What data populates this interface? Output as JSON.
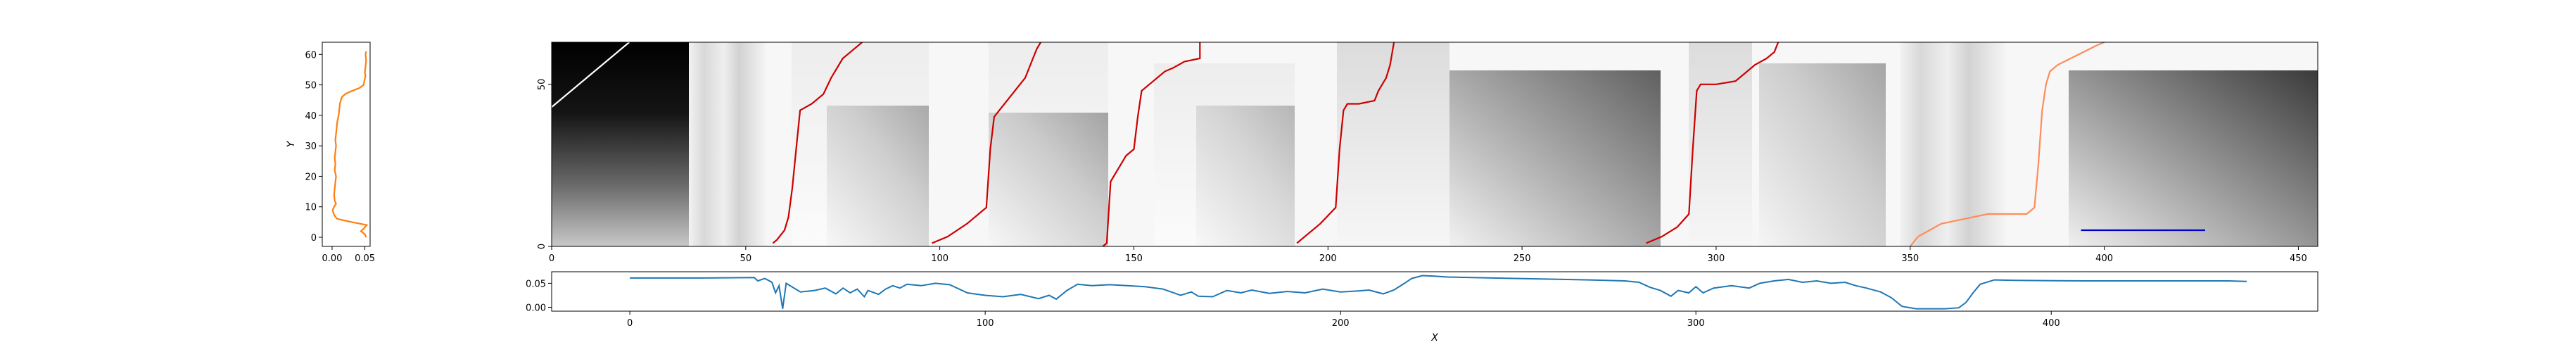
{
  "chart_data": [
    {
      "type": "line",
      "panel": "left-marginal",
      "orientation": "vertical",
      "ylabel": "Y",
      "xlabel": "",
      "xlim": [
        -0.015,
        0.058
      ],
      "ylim": [
        -3,
        64
      ],
      "xticks": [
        0.0,
        0.05
      ],
      "xtick_labels": [
        "0.00",
        "0.05"
      ],
      "yticks": [
        0,
        10,
        20,
        30,
        40,
        50,
        60
      ],
      "ytick_labels": [
        "0",
        "10",
        "20",
        "30",
        "40",
        "50",
        "60"
      ],
      "series": [
        {
          "color": "#ff7f0e",
          "points": [
            [
              0.052,
              0
            ],
            [
              0.05,
              1
            ],
            [
              0.044,
              2
            ],
            [
              0.049,
              3
            ],
            [
              0.053,
              4
            ],
            [
              0.03,
              5
            ],
            [
              0.008,
              6
            ],
            [
              0.004,
              7
            ],
            [
              0.002,
              8
            ],
            [
              0.001,
              9
            ],
            [
              0.003,
              10
            ],
            [
              0.006,
              11
            ],
            [
              0.004,
              12
            ],
            [
              0.003,
              14
            ],
            [
              0.004,
              16
            ],
            [
              0.005,
              18
            ],
            [
              0.006,
              20
            ],
            [
              0.004,
              22
            ],
            [
              0.005,
              24
            ],
            [
              0.004,
              26
            ],
            [
              0.005,
              28
            ],
            [
              0.006,
              30
            ],
            [
              0.005,
              32
            ],
            [
              0.006,
              34
            ],
            [
              0.007,
              36
            ],
            [
              0.008,
              38
            ],
            [
              0.01,
              40
            ],
            [
              0.011,
              42
            ],
            [
              0.012,
              44
            ],
            [
              0.015,
              46
            ],
            [
              0.02,
              47
            ],
            [
              0.03,
              48
            ],
            [
              0.042,
              49
            ],
            [
              0.048,
              50
            ],
            [
              0.049,
              51
            ],
            [
              0.05,
              52
            ],
            [
              0.051,
              53
            ],
            [
              0.05,
              54
            ],
            [
              0.051,
              56
            ],
            [
              0.052,
              58
            ],
            [
              0.051,
              60
            ],
            [
              0.052,
              61
            ]
          ]
        }
      ]
    },
    {
      "type": "heatmap",
      "panel": "main",
      "colormap": "gray",
      "xlim": [
        0,
        455
      ],
      "ylim": [
        0,
        63
      ],
      "xticks": [
        0,
        50,
        100,
        150,
        200,
        250,
        300,
        350,
        400,
        450
      ],
      "xtick_labels": [
        "0",
        "50",
        "100",
        "150",
        "200",
        "250",
        "300",
        "350",
        "400",
        "450"
      ],
      "yticks": [
        0,
        50
      ],
      "ytick_labels": [
        "0",
        "50"
      ],
      "paths": [
        {
          "color": "#ffffff",
          "points": [
            [
              0,
              43
            ],
            [
              20,
              63
            ]
          ]
        },
        {
          "color": "#cc0000",
          "points": [
            [
              57,
              1
            ],
            [
              58,
              2
            ],
            [
              60,
              5
            ],
            [
              61,
              9
            ],
            [
              62,
              18
            ],
            [
              63,
              30
            ],
            [
              64,
              42
            ],
            [
              67,
              44
            ],
            [
              70,
              47
            ],
            [
              72,
              52
            ],
            [
              75,
              58
            ],
            [
              77,
              60
            ],
            [
              78,
              61
            ],
            [
              80,
              63
            ]
          ]
        },
        {
          "color": "#cc0000",
          "points": [
            [
              98,
              1
            ],
            [
              102,
              3
            ],
            [
              107,
              7
            ],
            [
              112,
              12
            ],
            [
              113,
              30
            ],
            [
              114,
              40
            ],
            [
              116,
              43
            ],
            [
              118,
              46
            ],
            [
              122,
              52
            ],
            [
              124,
              58
            ],
            [
              125,
              61
            ],
            [
              126,
              63
            ]
          ]
        },
        {
          "color": "#cc0000",
          "points": [
            [
              142,
              0
            ],
            [
              143,
              1
            ],
            [
              144,
              20
            ],
            [
              145,
              22
            ],
            [
              148,
              28
            ],
            [
              150,
              30
            ],
            [
              151,
              40
            ],
            [
              152,
              48
            ],
            [
              154,
              50
            ],
            [
              158,
              54
            ],
            [
              160,
              55
            ],
            [
              163,
              57
            ],
            [
              167,
              58
            ],
            [
              167,
              63
            ]
          ]
        },
        {
          "color": "#cc0000",
          "points": [
            [
              192,
              1
            ],
            [
              194,
              3
            ],
            [
              198,
              7
            ],
            [
              202,
              12
            ],
            [
              203,
              30
            ],
            [
              204,
              42
            ],
            [
              205,
              44
            ],
            [
              208,
              44
            ],
            [
              212,
              45
            ],
            [
              213,
              48
            ],
            [
              215,
              52
            ],
            [
              216,
              56
            ],
            [
              217,
              63
            ]
          ]
        },
        {
          "color": "#cc0000",
          "points": [
            [
              282,
              1
            ],
            [
              286,
              3
            ],
            [
              290,
              6
            ],
            [
              293,
              10
            ],
            [
              294,
              30
            ],
            [
              295,
              48
            ],
            [
              296,
              50
            ],
            [
              300,
              50
            ],
            [
              305,
              51
            ],
            [
              307,
              53
            ],
            [
              310,
              56
            ],
            [
              313,
              58
            ],
            [
              315,
              60
            ],
            [
              316,
              63
            ]
          ]
        },
        {
          "color": "#ff8c5a",
          "points": [
            [
              350,
              0
            ],
            [
              352,
              3
            ],
            [
              355,
              5
            ],
            [
              358,
              7
            ],
            [
              362,
              8
            ],
            [
              366,
              9
            ],
            [
              370,
              10
            ],
            [
              375,
              10
            ],
            [
              380,
              10
            ],
            [
              382,
              12
            ],
            [
              383,
              25
            ],
            [
              384,
              42
            ],
            [
              385,
              50
            ],
            [
              386,
              54
            ],
            [
              388,
              56
            ],
            [
              393,
              59
            ],
            [
              398,
              62
            ],
            [
              400,
              63
            ]
          ]
        },
        {
          "color": "#0000cc",
          "points": [
            [
              394,
              5
            ],
            [
              426,
              5
            ]
          ]
        }
      ]
    },
    {
      "type": "line",
      "panel": "bottom-marginal",
      "xlabel": "X",
      "ylabel": "",
      "xlim": [
        -22,
        475
      ],
      "ylim": [
        -0.008,
        0.074
      ],
      "xticks": [
        0,
        100,
        200,
        300,
        400
      ],
      "xtick_labels": [
        "0",
        "100",
        "200",
        "300",
        "400"
      ],
      "yticks": [
        0.0,
        0.05
      ],
      "ytick_labels": [
        "0.00",
        "0.05"
      ],
      "series": [
        {
          "color": "#1f77b4",
          "points": [
            [
              0,
              0.061
            ],
            [
              20,
              0.061
            ],
            [
              35,
              0.062
            ],
            [
              36,
              0.055
            ],
            [
              38,
              0.06
            ],
            [
              40,
              0.052
            ],
            [
              41,
              0.03
            ],
            [
              42,
              0.045
            ],
            [
              43,
              -0.003
            ],
            [
              44,
              0.05
            ],
            [
              48,
              0.032
            ],
            [
              52,
              0.035
            ],
            [
              55,
              0.04
            ],
            [
              58,
              0.028
            ],
            [
              60,
              0.04
            ],
            [
              62,
              0.03
            ],
            [
              64,
              0.038
            ],
            [
              66,
              0.022
            ],
            [
              67,
              0.035
            ],
            [
              70,
              0.027
            ],
            [
              72,
              0.038
            ],
            [
              74,
              0.045
            ],
            [
              76,
              0.04
            ],
            [
              78,
              0.048
            ],
            [
              82,
              0.045
            ],
            [
              86,
              0.05
            ],
            [
              90,
              0.047
            ],
            [
              95,
              0.03
            ],
            [
              100,
              0.025
            ],
            [
              105,
              0.022
            ],
            [
              110,
              0.027
            ],
            [
              115,
              0.018
            ],
            [
              118,
              0.025
            ],
            [
              120,
              0.017
            ],
            [
              123,
              0.035
            ],
            [
              126,
              0.048
            ],
            [
              130,
              0.045
            ],
            [
              135,
              0.047
            ],
            [
              140,
              0.045
            ],
            [
              145,
              0.043
            ],
            [
              150,
              0.038
            ],
            [
              155,
              0.025
            ],
            [
              158,
              0.032
            ],
            [
              160,
              0.023
            ],
            [
              164,
              0.022
            ],
            [
              168,
              0.035
            ],
            [
              172,
              0.03
            ],
            [
              175,
              0.036
            ],
            [
              180,
              0.029
            ],
            [
              185,
              0.033
            ],
            [
              190,
              0.03
            ],
            [
              195,
              0.038
            ],
            [
              200,
              0.032
            ],
            [
              205,
              0.034
            ],
            [
              208,
              0.036
            ],
            [
              212,
              0.028
            ],
            [
              215,
              0.036
            ],
            [
              218,
              0.05
            ],
            [
              220,
              0.06
            ],
            [
              223,
              0.066
            ],
            [
              226,
              0.065
            ],
            [
              230,
              0.063
            ],
            [
              250,
              0.06
            ],
            [
              270,
              0.057
            ],
            [
              280,
              0.055
            ],
            [
              284,
              0.052
            ],
            [
              287,
              0.042
            ],
            [
              290,
              0.035
            ],
            [
              293,
              0.023
            ],
            [
              295,
              0.035
            ],
            [
              298,
              0.03
            ],
            [
              300,
              0.043
            ],
            [
              302,
              0.03
            ],
            [
              305,
              0.04
            ],
            [
              310,
              0.045
            ],
            [
              315,
              0.04
            ],
            [
              318,
              0.05
            ],
            [
              322,
              0.055
            ],
            [
              326,
              0.058
            ],
            [
              330,
              0.052
            ],
            [
              334,
              0.055
            ],
            [
              338,
              0.05
            ],
            [
              342,
              0.052
            ],
            [
              345,
              0.045
            ],
            [
              348,
              0.04
            ],
            [
              352,
              0.032
            ],
            [
              355,
              0.02
            ],
            [
              358,
              0.002
            ],
            [
              362,
              -0.003
            ],
            [
              370,
              -0.003
            ],
            [
              374,
              -0.001
            ],
            [
              376,
              0.01
            ],
            [
              378,
              0.03
            ],
            [
              380,
              0.048
            ],
            [
              384,
              0.057
            ],
            [
              390,
              0.056
            ],
            [
              410,
              0.055
            ],
            [
              430,
              0.055
            ],
            [
              450,
              0.055
            ],
            [
              455,
              0.054
            ]
          ]
        }
      ]
    }
  ]
}
